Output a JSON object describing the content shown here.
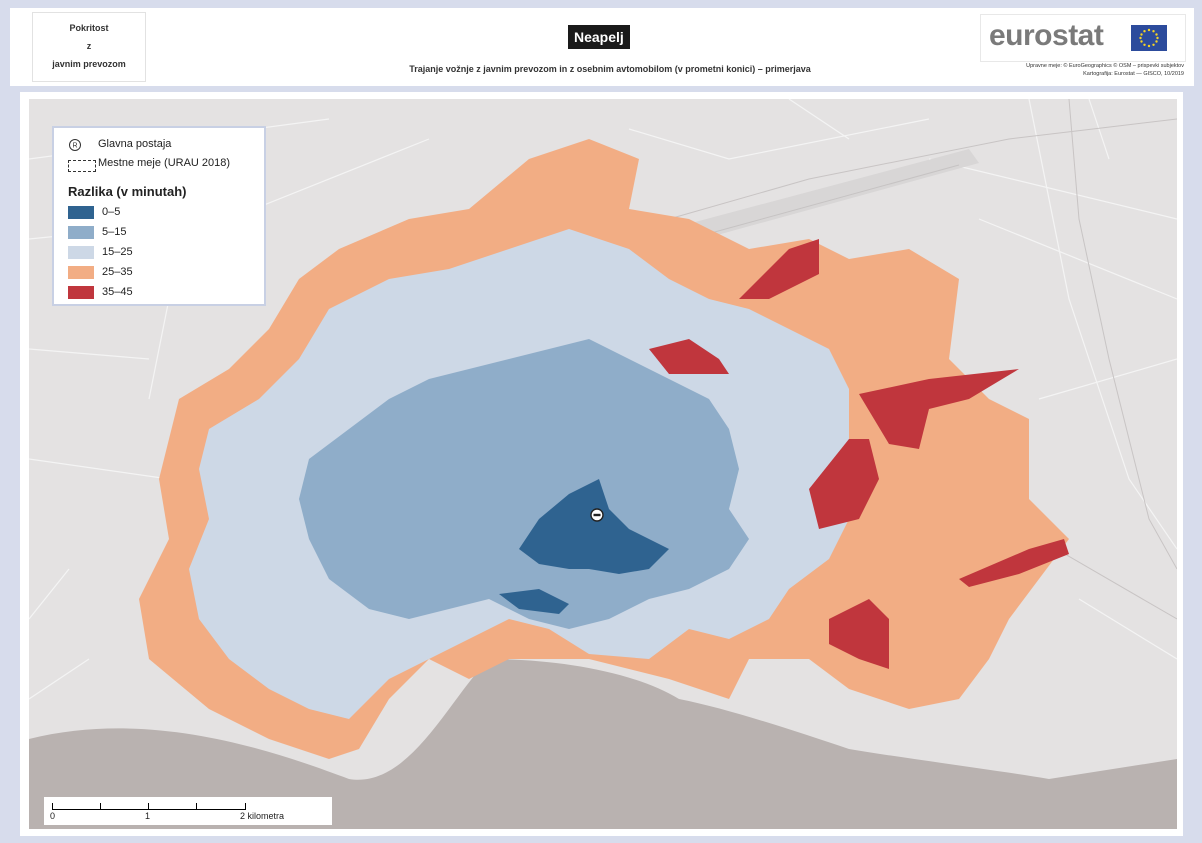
{
  "header": {
    "topic_line1": "Pokritost",
    "topic_line2": "z",
    "topic_line3": "javnim prevozom",
    "title": "Neapelj",
    "subtitle": "Trajanje vožnje z javnim prevozom in z osebnim avtomobilom (v prometni konici) – primerjava",
    "logo": "eurostat",
    "credits_line1": "Upravne meje: © EuroGeographics © OSM – prispevki subjektov",
    "credits_line2": "Kartografija: Eurostat — GISCO, 10/2019"
  },
  "legend": {
    "station_label": "Glavna postaja",
    "boundary_label": "Mestne meje (URAU 2018)",
    "heading": "Razlika (v minutah)",
    "classes": [
      {
        "label": "0–5",
        "color": "#2f6390"
      },
      {
        "label": "5–15",
        "color": "#8fadc9"
      },
      {
        "label": "15–25",
        "color": "#cdd8e6"
      },
      {
        "label": "25–35",
        "color": "#f2ad84"
      },
      {
        "label": "35–45",
        "color": "#c0363d"
      }
    ]
  },
  "scale": {
    "labels": [
      "0",
      "1",
      "2 kilometra"
    ]
  },
  "colors": {
    "sea": "#b9b2b0",
    "land": "#e4e2e2"
  }
}
